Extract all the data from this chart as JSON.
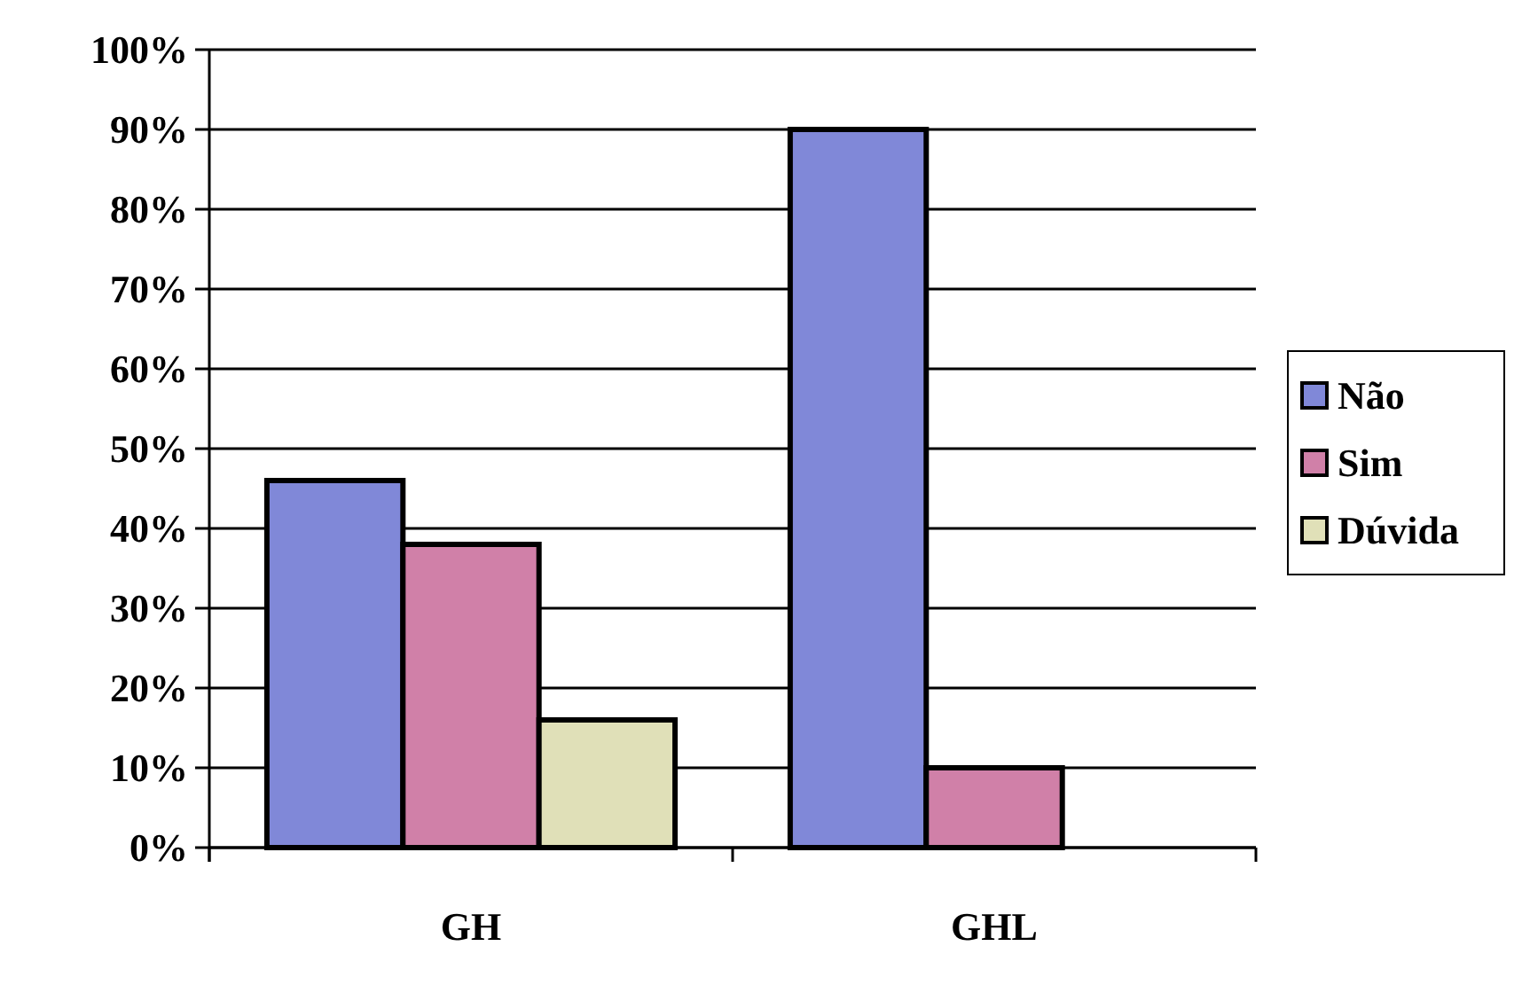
{
  "chart_data": {
    "type": "bar",
    "categories": [
      "GH",
      "GHL"
    ],
    "series": [
      {
        "name": "Não",
        "color": "#8088d8",
        "values": [
          46,
          90
        ]
      },
      {
        "name": "Sim",
        "color": "#d080a8",
        "values": [
          38,
          10
        ]
      },
      {
        "name": "Dúvida",
        "color": "#e0e0b8",
        "values": [
          16,
          null
        ]
      }
    ],
    "ylim": [
      0,
      100
    ],
    "yticks": [
      {
        "value": 0,
        "label": "0%"
      },
      {
        "value": 10,
        "label": "10%"
      },
      {
        "value": 20,
        "label": "20%"
      },
      {
        "value": 30,
        "label": "30%"
      },
      {
        "value": 40,
        "label": "40%"
      },
      {
        "value": 50,
        "label": "50%"
      },
      {
        "value": 60,
        "label": "60%"
      },
      {
        "value": 70,
        "label": "70%"
      },
      {
        "value": 80,
        "label": "80%"
      },
      {
        "value": 90,
        "label": "90%"
      },
      {
        "value": 100,
        "label": "100%"
      }
    ],
    "grid": "y",
    "legend": "right"
  }
}
